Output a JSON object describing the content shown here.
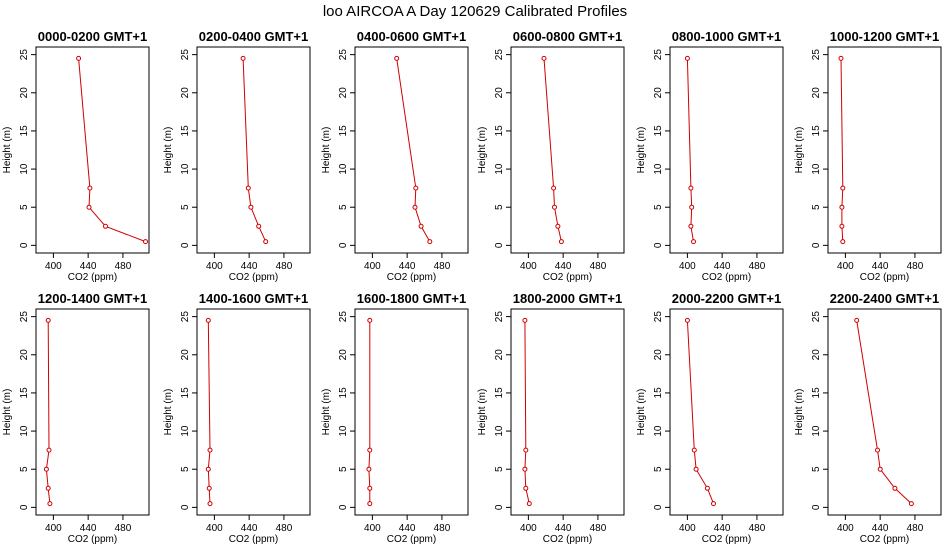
{
  "figure": {
    "title": "loo AIRCOA A  Day 120629  Calibrated Profiles"
  },
  "colors": {
    "series": "#d00000",
    "axes": "#000000",
    "background": "#ffffff"
  },
  "chart_data": [
    {
      "type": "line",
      "title": "0000-0200 GMT+1",
      "xlabel": "CO2 (ppm)",
      "ylabel": "Height (m)",
      "xlim": [
        380,
        510
      ],
      "ylim": [
        -1,
        26
      ],
      "xticks": [
        400,
        440,
        480
      ],
      "yticks": [
        0,
        5,
        10,
        15,
        20,
        25
      ],
      "x": [
        506,
        460,
        441,
        442,
        429
      ],
      "y": [
        0.5,
        2.5,
        5,
        7.5,
        24.5
      ]
    },
    {
      "type": "line",
      "title": "0200-0400 GMT+1",
      "xlabel": "CO2 (ppm)",
      "ylabel": "Height (m)",
      "xlim": [
        380,
        510
      ],
      "ylim": [
        -1,
        26
      ],
      "xticks": [
        400,
        440,
        480
      ],
      "yticks": [
        0,
        5,
        10,
        15,
        20,
        25
      ],
      "x": [
        459,
        451,
        442,
        439,
        433
      ],
      "y": [
        0.5,
        2.5,
        5,
        7.5,
        24.5
      ]
    },
    {
      "type": "line",
      "title": "0400-0600 GMT+1",
      "xlabel": "CO2 (ppm)",
      "ylabel": "Height (m)",
      "xlim": [
        380,
        510
      ],
      "ylim": [
        -1,
        26
      ],
      "xticks": [
        400,
        440,
        480
      ],
      "yticks": [
        0,
        5,
        10,
        15,
        20,
        25
      ],
      "x": [
        466,
        456,
        449,
        450,
        428
      ],
      "y": [
        0.5,
        2.5,
        5,
        7.5,
        24.5
      ]
    },
    {
      "type": "line",
      "title": "0600-0800 GMT+1",
      "xlabel": "CO2 (ppm)",
      "ylabel": "Height (m)",
      "xlim": [
        380,
        510
      ],
      "ylim": [
        -1,
        26
      ],
      "xticks": [
        400,
        440,
        480
      ],
      "yticks": [
        0,
        5,
        10,
        15,
        20,
        25
      ],
      "x": [
        438,
        434,
        430,
        429,
        418
      ],
      "y": [
        0.5,
        2.5,
        5,
        7.5,
        24.5
      ]
    },
    {
      "type": "line",
      "title": "0800-1000 GMT+1",
      "xlabel": "CO2 (ppm)",
      "ylabel": "Height (m)",
      "xlim": [
        380,
        510
      ],
      "ylim": [
        -1,
        26
      ],
      "xticks": [
        400,
        440,
        480
      ],
      "yticks": [
        0,
        5,
        10,
        15,
        20,
        25
      ],
      "x": [
        407,
        404,
        405,
        404,
        400
      ],
      "y": [
        0.5,
        2.5,
        5,
        7.5,
        24.5
      ]
    },
    {
      "type": "line",
      "title": "1000-1200 GMT+1",
      "xlabel": "CO2 (ppm)",
      "ylabel": "Height (m)",
      "xlim": [
        380,
        510
      ],
      "ylim": [
        -1,
        26
      ],
      "xticks": [
        400,
        440,
        480
      ],
      "yticks": [
        0,
        5,
        10,
        15,
        20,
        25
      ],
      "x": [
        397,
        396,
        396,
        397,
        395
      ],
      "y": [
        0.5,
        2.5,
        5,
        7.5,
        24.5
      ]
    },
    {
      "type": "line",
      "title": "1200-1400 GMT+1",
      "xlabel": "CO2 (ppm)",
      "ylabel": "Height (m)",
      "xlim": [
        380,
        510
      ],
      "ylim": [
        -1,
        26
      ],
      "xticks": [
        400,
        440,
        480
      ],
      "yticks": [
        0,
        5,
        10,
        15,
        20,
        25
      ],
      "x": [
        396,
        394,
        392,
        395,
        394
      ],
      "y": [
        0.5,
        2.5,
        5,
        7.5,
        24.5
      ]
    },
    {
      "type": "line",
      "title": "1400-1600 GMT+1",
      "xlabel": "CO2 (ppm)",
      "ylabel": "Height (m)",
      "xlim": [
        380,
        510
      ],
      "ylim": [
        -1,
        26
      ],
      "xticks": [
        400,
        440,
        480
      ],
      "yticks": [
        0,
        5,
        10,
        15,
        20,
        25
      ],
      "x": [
        395,
        394,
        393,
        395,
        393
      ],
      "y": [
        0.5,
        2.5,
        5,
        7.5,
        24.5
      ]
    },
    {
      "type": "line",
      "title": "1600-1800 GMT+1",
      "xlabel": "CO2 (ppm)",
      "ylabel": "Height (m)",
      "xlim": [
        380,
        510
      ],
      "ylim": [
        -1,
        26
      ],
      "xticks": [
        400,
        440,
        480
      ],
      "yticks": [
        0,
        5,
        10,
        15,
        20,
        25
      ],
      "x": [
        397,
        397,
        396,
        397,
        397
      ],
      "y": [
        0.5,
        2.5,
        5,
        7.5,
        24.5
      ]
    },
    {
      "type": "line",
      "title": "1800-2000 GMT+1",
      "xlabel": "CO2 (ppm)",
      "ylabel": "Height (m)",
      "xlim": [
        380,
        510
      ],
      "ylim": [
        -1,
        26
      ],
      "xticks": [
        400,
        440,
        480
      ],
      "yticks": [
        0,
        5,
        10,
        15,
        20,
        25
      ],
      "x": [
        401,
        397,
        396,
        397,
        396
      ],
      "y": [
        0.5,
        2.5,
        5,
        7.5,
        24.5
      ]
    },
    {
      "type": "line",
      "title": "2000-2200 GMT+1",
      "xlabel": "CO2 (ppm)",
      "ylabel": "Height (m)",
      "xlim": [
        380,
        510
      ],
      "ylim": [
        -1,
        26
      ],
      "xticks": [
        400,
        440,
        480
      ],
      "yticks": [
        0,
        5,
        10,
        15,
        20,
        25
      ],
      "x": [
        430,
        423,
        410,
        408,
        400
      ],
      "y": [
        0.5,
        2.5,
        5,
        7.5,
        24.5
      ]
    },
    {
      "type": "line",
      "title": "2200-2400 GMT+1",
      "xlabel": "CO2 (ppm)",
      "ylabel": "Height (m)",
      "xlim": [
        380,
        510
      ],
      "ylim": [
        -1,
        26
      ],
      "xticks": [
        400,
        440,
        480
      ],
      "yticks": [
        0,
        5,
        10,
        15,
        20,
        25
      ],
      "x": [
        476,
        457,
        440,
        437,
        413
      ],
      "y": [
        0.5,
        2.5,
        5,
        7.5,
        24.5
      ]
    }
  ]
}
